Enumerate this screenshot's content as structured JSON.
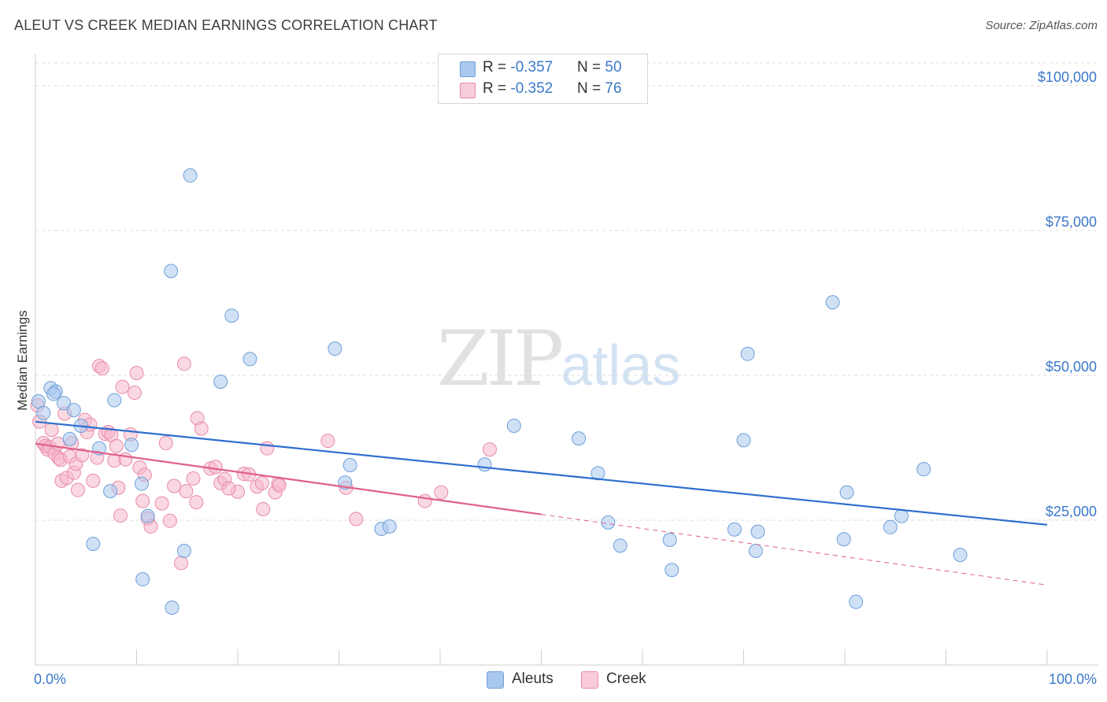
{
  "header": {
    "title": "ALEUT VS CREEK MEDIAN EARNINGS CORRELATION CHART",
    "source": "Source: ZipAtlas.com"
  },
  "watermark": {
    "zip": "ZIP",
    "atlas": "atlas"
  },
  "legend": {
    "rows": [
      {
        "r_label": "R = ",
        "r_value": "-0.357",
        "n_label": "N = ",
        "n_value": "50",
        "color": "#a9c8ee"
      },
      {
        "r_label": "R = ",
        "r_value": "-0.352",
        "n_label": "N = ",
        "n_value": "76",
        "color": "#f5b8cb"
      }
    ]
  },
  "bottom_legend": {
    "aleuts": "Aleuts",
    "creek": "Creek"
  },
  "colors": {
    "aleut_fill": "#a9c8ee",
    "aleut_stroke": "#6f9fd8",
    "aleut_line": "#2e6fce",
    "creek_fill": "#f5b8cb",
    "creek_stroke": "#e88aa8",
    "creek_line": "#e0608a",
    "axis_text": "#3b78c9",
    "grid": "#dcdcdc"
  },
  "chart_data": {
    "type": "scatter",
    "title": "ALEUT VS CREEK MEDIAN EARNINGS CORRELATION CHART",
    "xlabel": "",
    "ylabel": "Median Earnings",
    "xlim": [
      0,
      100
    ],
    "ylim": [
      0,
      105000
    ],
    "x_tick_labels": [
      "0.0%",
      "100.0%"
    ],
    "y_ticks": [
      25000,
      50000,
      75000,
      100000
    ],
    "y_tick_labels": [
      "$25,000",
      "$50,000",
      "$75,000",
      "$100,000"
    ],
    "grid": "horizontal dashed",
    "legend_position": "top-center",
    "series": [
      {
        "name": "Aleuts",
        "r": -0.357,
        "n": 50,
        "trend": {
          "x": [
            0,
            100
          ],
          "y": [
            42000,
            24200
          ],
          "dashed_from": null
        },
        "points": [
          [
            0.3,
            45500
          ],
          [
            1.5,
            47800
          ],
          [
            2.0,
            47200
          ],
          [
            1.8,
            46800
          ],
          [
            2.8,
            45200
          ],
          [
            0.8,
            43500
          ],
          [
            3.8,
            44000
          ],
          [
            4.5,
            41300
          ],
          [
            3.4,
            39000
          ],
          [
            7.8,
            45700
          ],
          [
            6.3,
            37400
          ],
          [
            9.5,
            38000
          ],
          [
            7.4,
            30000
          ],
          [
            10.5,
            31300
          ],
          [
            11.1,
            25700
          ],
          [
            5.7,
            20900
          ],
          [
            14.7,
            19700
          ],
          [
            10.6,
            14800
          ],
          [
            13.5,
            9900
          ],
          [
            15.3,
            84500
          ],
          [
            13.4,
            68000
          ],
          [
            19.4,
            60300
          ],
          [
            21.2,
            52800
          ],
          [
            18.3,
            48900
          ],
          [
            29.6,
            54600
          ],
          [
            30.6,
            31500
          ],
          [
            31.1,
            34500
          ],
          [
            34.2,
            23500
          ],
          [
            35.0,
            23900
          ],
          [
            47.3,
            41300
          ],
          [
            44.4,
            34600
          ],
          [
            53.7,
            39100
          ],
          [
            55.6,
            33100
          ],
          [
            56.6,
            24600
          ],
          [
            57.8,
            20600
          ],
          [
            62.7,
            21600
          ],
          [
            62.9,
            16400
          ],
          [
            69.1,
            23400
          ],
          [
            70.4,
            53700
          ],
          [
            70.0,
            38800
          ],
          [
            71.4,
            23000
          ],
          [
            71.2,
            19700
          ],
          [
            78.8,
            62600
          ],
          [
            80.2,
            29800
          ],
          [
            79.9,
            21700
          ],
          [
            81.1,
            10900
          ],
          [
            84.5,
            23800
          ],
          [
            85.6,
            25700
          ],
          [
            87.8,
            33800
          ],
          [
            91.4,
            19000
          ]
        ]
      },
      {
        "name": "Creek",
        "r": -0.352,
        "n": 76,
        "trend": {
          "x": [
            0,
            50,
            100
          ],
          "y": [
            38200,
            26000,
            13800
          ],
          "dashed_from": 50
        },
        "points": [
          [
            0.2,
            44800
          ],
          [
            0.4,
            42000
          ],
          [
            0.8,
            38300
          ],
          [
            1.0,
            37800
          ],
          [
            1.2,
            37200
          ],
          [
            1.4,
            37600
          ],
          [
            1.6,
            40600
          ],
          [
            1.9,
            36500
          ],
          [
            2.2,
            38200
          ],
          [
            2.3,
            35700
          ],
          [
            2.5,
            35400
          ],
          [
            2.6,
            31800
          ],
          [
            2.9,
            43400
          ],
          [
            3.1,
            32300
          ],
          [
            3.4,
            36000
          ],
          [
            3.6,
            38300
          ],
          [
            3.8,
            33200
          ],
          [
            4.0,
            34700
          ],
          [
            4.2,
            30200
          ],
          [
            4.6,
            36200
          ],
          [
            4.9,
            42300
          ],
          [
            5.1,
            40200
          ],
          [
            5.4,
            41500
          ],
          [
            5.7,
            31800
          ],
          [
            6.1,
            35800
          ],
          [
            6.3,
            51600
          ],
          [
            6.6,
            51200
          ],
          [
            6.9,
            39900
          ],
          [
            7.2,
            40200
          ],
          [
            7.5,
            39700
          ],
          [
            7.8,
            35300
          ],
          [
            8.0,
            37800
          ],
          [
            8.2,
            30600
          ],
          [
            8.6,
            48000
          ],
          [
            8.4,
            25800
          ],
          [
            8.9,
            35500
          ],
          [
            9.4,
            39800
          ],
          [
            9.8,
            47000
          ],
          [
            10.0,
            50400
          ],
          [
            10.3,
            34100
          ],
          [
            10.6,
            28300
          ],
          [
            10.8,
            32800
          ],
          [
            11.1,
            25300
          ],
          [
            11.4,
            23900
          ],
          [
            12.5,
            27900
          ],
          [
            12.9,
            38300
          ],
          [
            13.3,
            24900
          ],
          [
            13.7,
            30900
          ],
          [
            14.4,
            17600
          ],
          [
            14.7,
            52000
          ],
          [
            14.9,
            30000
          ],
          [
            15.6,
            32200
          ],
          [
            15.9,
            28100
          ],
          [
            16.0,
            42600
          ],
          [
            16.4,
            40800
          ],
          [
            17.3,
            33900
          ],
          [
            17.8,
            34200
          ],
          [
            18.3,
            31400
          ],
          [
            18.7,
            32100
          ],
          [
            20.0,
            29900
          ],
          [
            20.6,
            33000
          ],
          [
            21.1,
            32900
          ],
          [
            21.9,
            30800
          ],
          [
            22.5,
            26900
          ],
          [
            22.9,
            37400
          ],
          [
            23.7,
            29800
          ],
          [
            24.0,
            31300
          ],
          [
            24.1,
            31000
          ],
          [
            28.9,
            38700
          ],
          [
            30.7,
            30600
          ],
          [
            31.7,
            25200
          ],
          [
            38.5,
            28300
          ],
          [
            40.1,
            29800
          ],
          [
            44.9,
            37200
          ],
          [
            22.4,
            31400
          ],
          [
            19.1,
            30500
          ]
        ]
      }
    ]
  }
}
